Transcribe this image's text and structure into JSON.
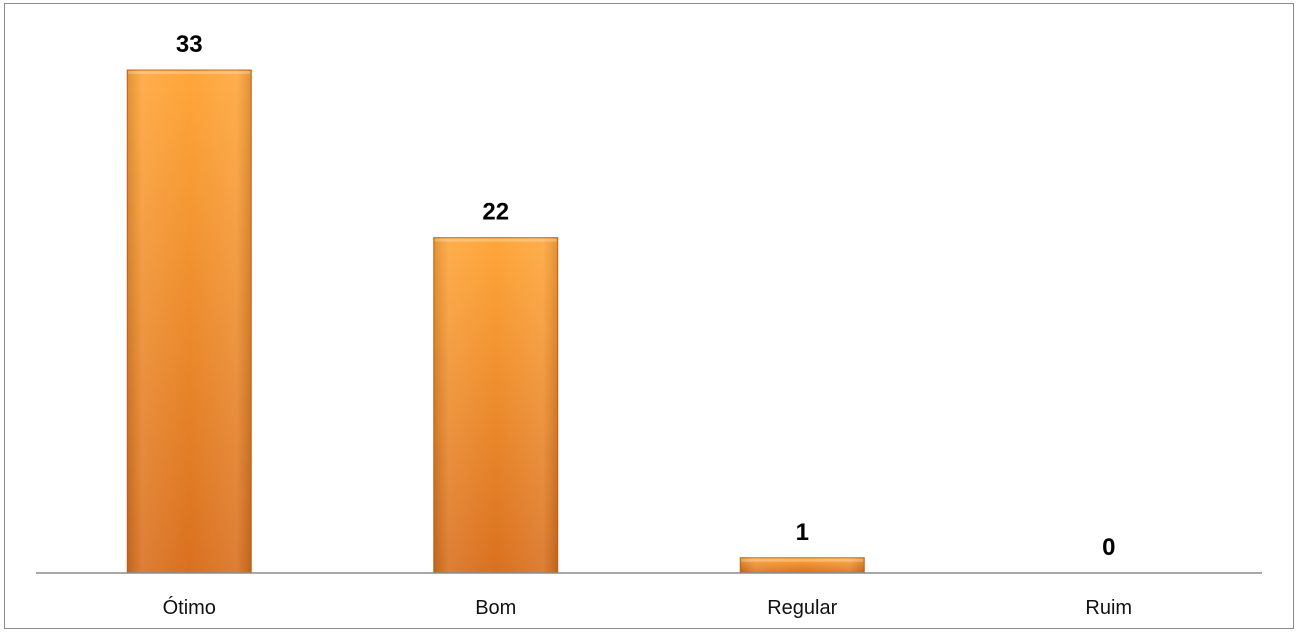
{
  "chart_data": {
    "type": "bar",
    "categories": [
      "Ótimo",
      "Bom",
      "Regular",
      "Ruim"
    ],
    "values": [
      33,
      22,
      1,
      0
    ],
    "data_labels": [
      "33",
      "22",
      "1",
      "0"
    ],
    "title": "",
    "xlabel": "",
    "ylabel": "",
    "ylim": [
      0,
      33
    ],
    "grid": false,
    "legend": "none",
    "colors": {
      "bar_light": "#ffa63a",
      "bar_dark": "#d9701f",
      "bar_edge": "#c9661c",
      "axis": "#8c8c8c"
    }
  }
}
